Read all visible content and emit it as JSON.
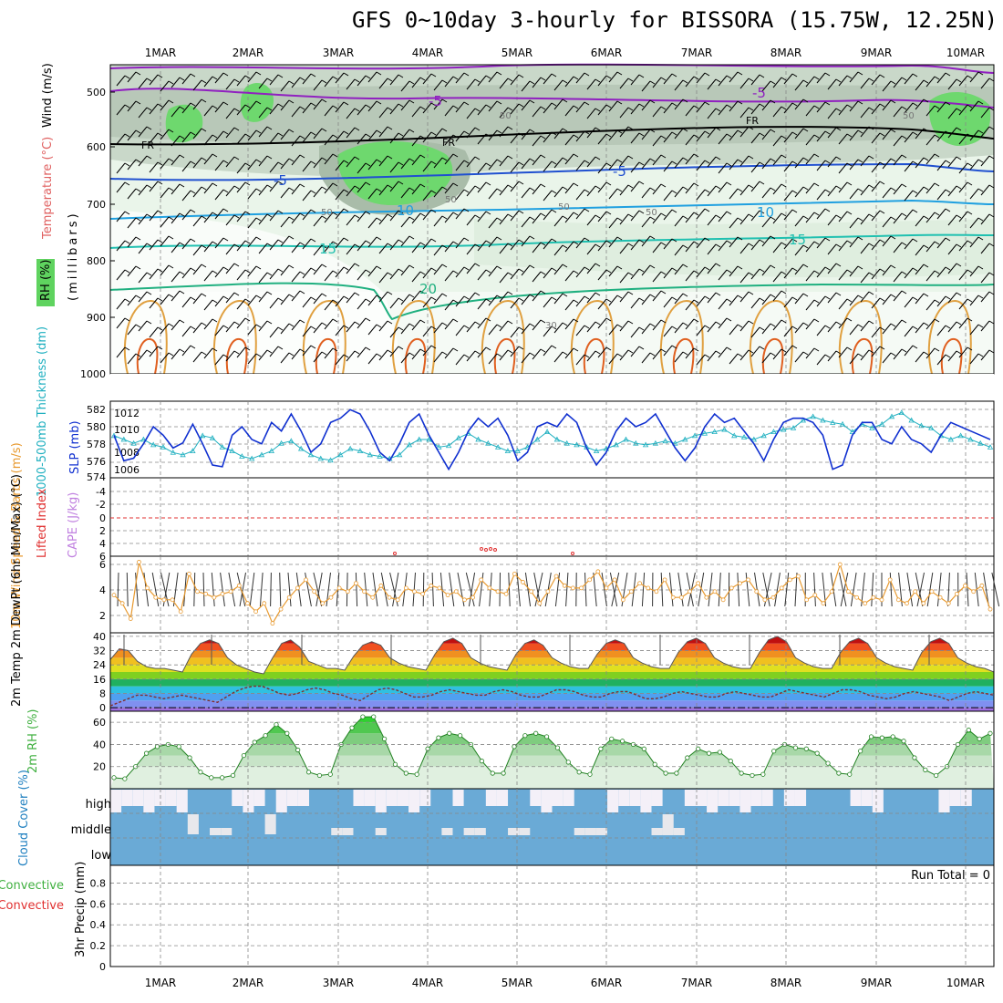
{
  "title": "GFS 0~10day 3-hourly for BISSORA (15.75W, 12.25N)",
  "dates": [
    "1MAR",
    "2MAR",
    "3MAR",
    "4MAR",
    "5MAR",
    "6MAR",
    "7MAR",
    "8MAR",
    "9MAR",
    "10MAR"
  ],
  "colors": {
    "rh": "#5fd35f",
    "slp": "#1030d0",
    "thick": "#20b0c0",
    "wind": "#e89a30",
    "fr": "#000000"
  },
  "chart_data": [
    {
      "type": "area",
      "panel": "upper-air",
      "ylabel_parts": [
        "Wind (m/s)",
        "Temperature (°C)",
        "RH (%)"
      ],
      "yunits": "(millibars)",
      "ylim": [
        1000,
        450
      ],
      "yticks": [
        "500",
        "600",
        "700",
        "800",
        "900",
        "1000"
      ],
      "isotherm_labels": [
        "-5",
        "FR",
        "-5",
        "10",
        "15",
        "20",
        "-5",
        "FR",
        "-5",
        "10",
        "15"
      ],
      "rh_labels": [
        "50",
        "50",
        "50",
        "50",
        "50",
        "30",
        "50"
      ]
    },
    {
      "type": "line",
      "panel": "slp-thickness",
      "ylabel_left": "1000-500mb Thickness (dm)",
      "ylabel_right": "SLP (mb)",
      "yticks_left": [
        "582",
        "580",
        "578",
        "576",
        "574"
      ],
      "yticks_right": [
        "1012",
        "1010",
        "1008",
        "1006"
      ],
      "series": [
        {
          "name": "SLP (mb)",
          "values": [
            1009.5,
            1006.5,
            1006.8,
            1008.5,
            1010.5,
            1009.5,
            1008.0,
            1008.6,
            1010.8,
            1008.5,
            1006.0,
            1005.8,
            1009.5,
            1010.5,
            1009.0,
            1008.5,
            1011.0,
            1010.0,
            1012.0,
            1010.0,
            1007.5,
            1008.5,
            1011.0,
            1011.5,
            1012.5,
            1012.0,
            1010.0,
            1007.5,
            1006.5,
            1008.5,
            1011.0,
            1012.0,
            1009.5,
            1007.5,
            1005.5,
            1007.5,
            1010.0,
            1011.5,
            1010.5,
            1011.5,
            1009.5,
            1006.5,
            1007.5,
            1010.5,
            1011.0,
            1010.5,
            1012.0,
            1011.0,
            1008.0,
            1006.0,
            1007.5,
            1010.0,
            1011.5,
            1010.5,
            1011.0,
            1012.0,
            1010.0,
            1008.0,
            1006.5,
            1008.0,
            1010.5,
            1012.0,
            1011.0,
            1011.5,
            1010.0,
            1008.5,
            1006.5,
            1009.0,
            1011.0,
            1011.5,
            1011.5,
            1011.0,
            1009.5,
            1005.5,
            1006.0,
            1009.5,
            1011.0,
            1011.0,
            1009.0,
            1008.5,
            1010.5,
            1009.0,
            1008.5,
            1007.5,
            1009.5,
            1011.0,
            1010.5,
            1010.0,
            1009.5,
            1009.0
          ]
        },
        {
          "name": "Thickness (dm)",
          "values": [
            578.5,
            578.0,
            577.5,
            578.0,
            577.3,
            577.0,
            576.3,
            576.0,
            576.5,
            578.5,
            578.2,
            577.0,
            576.5,
            575.8,
            575.5,
            576.0,
            576.5,
            577.5,
            577.8,
            576.8,
            576.0,
            575.5,
            575.3,
            576.0,
            576.8,
            576.5,
            576.0,
            575.8,
            575.5,
            576.0,
            577.3,
            578.0,
            578.0,
            577.0,
            577.2,
            578.2,
            578.8,
            578.0,
            577.5,
            577.0,
            576.5,
            576.5,
            577.0,
            578.0,
            579.0,
            578.0,
            577.5,
            577.3,
            577.0,
            576.5,
            576.8,
            577.3,
            578.0,
            577.5,
            577.3,
            577.5,
            577.8,
            577.5,
            578.0,
            578.5,
            578.8,
            579.0,
            579.3,
            578.5,
            578.3,
            578.0,
            578.5,
            579.0,
            579.3,
            579.5,
            580.5,
            581.0,
            580.5,
            580.2,
            580.0,
            579.0,
            580.0,
            579.5,
            580.0,
            581.0,
            581.5,
            580.5,
            579.8,
            579.5,
            578.5,
            578.0,
            578.5,
            578.0,
            577.5,
            577.0
          ]
        }
      ]
    },
    {
      "type": "line",
      "panel": "stability",
      "ylabel_left": "Lifted Index",
      "ylabel_right": "CAPE (J/kg)",
      "yticks": [
        "-4",
        "-2",
        "0",
        "2",
        "4",
        "6"
      ],
      "ylim": [
        -6,
        6
      ],
      "series": [
        {
          "name": "Lifted Index",
          "values": [
            6.0,
            5.8,
            6.0,
            5.9,
            5.8,
            6.0
          ]
        }
      ]
    },
    {
      "type": "line",
      "panel": "wind10m",
      "ylabel": "10m Wind Speed & Barbs (m/s)",
      "yticks": [
        "2",
        "4",
        "6"
      ],
      "ylim": [
        0,
        6.5
      ],
      "series": [
        {
          "name": "Speed",
          "values": [
            3.2,
            2.5,
            1.2,
            6.0,
            3.8,
            3.0,
            2.8,
            2.8,
            1.8,
            5.0,
            3.5,
            3.3,
            3.0,
            3.3,
            3.5,
            4.0,
            2.5,
            1.8,
            2.5,
            0.8,
            2.0,
            3.0,
            3.8,
            4.5,
            3.5,
            2.5,
            3.0,
            3.8,
            3.5,
            4.2,
            3.5,
            3.0,
            4.0,
            3.0,
            2.8,
            3.8,
            3.5,
            3.3,
            4.0,
            3.8,
            3.2,
            3.5,
            2.8,
            3.0,
            4.5,
            3.8,
            3.5,
            3.3,
            5.0,
            4.3,
            3.5,
            2.5,
            3.5,
            4.8,
            4.0,
            3.8,
            3.8,
            4.5,
            5.2,
            3.8,
            4.5,
            2.8,
            3.5,
            4.2,
            3.8,
            3.5,
            4.5,
            3.0,
            3.0,
            3.5,
            4.2,
            3.0,
            3.5,
            2.8,
            3.8,
            4.2,
            4.5,
            3.5,
            2.8,
            3.0,
            3.8,
            4.5,
            4.8,
            2.8,
            3.2,
            2.5,
            3.5,
            5.8,
            3.5,
            3.0,
            2.5,
            3.0,
            2.8,
            4.5,
            2.8,
            2.5,
            3.5,
            2.5,
            3.5,
            3.0,
            2.5,
            3.3,
            4.0,
            3.5,
            4.0,
            2.0
          ]
        }
      ]
    },
    {
      "type": "area",
      "panel": "temperature",
      "ylabel": "2m Temp 2m DewPt (6hr Min/Max) (°C)",
      "yticks": [
        "0",
        "8",
        "16",
        "24",
        "32",
        "40"
      ],
      "ylim": [
        -2,
        42
      ],
      "series": [
        {
          "name": "2m Temp",
          "values": [
            27,
            33,
            32,
            26,
            23,
            22,
            22,
            21,
            20,
            30,
            36,
            38,
            36,
            28,
            24,
            22,
            20,
            19,
            28,
            36,
            38,
            34,
            26,
            24,
            22,
            22,
            21,
            29,
            35,
            37,
            35,
            28,
            25,
            23,
            22,
            21,
            30,
            37,
            39,
            36,
            28,
            25,
            23,
            22,
            21,
            30,
            36,
            38,
            35,
            28,
            25,
            23,
            22,
            22,
            30,
            36,
            38,
            36,
            28,
            25,
            23,
            22,
            22,
            31,
            37,
            39,
            36,
            28,
            25,
            23,
            22,
            22,
            31,
            38,
            40,
            37,
            28,
            25,
            23,
            22,
            22,
            31,
            37,
            39,
            36,
            28,
            25,
            23,
            22,
            21,
            31,
            37,
            39,
            36,
            28,
            25,
            23,
            22,
            20
          ]
        },
        {
          "name": "2m DewPt",
          "values": [
            1,
            3,
            5,
            7,
            7,
            6,
            5,
            6,
            7,
            6,
            5,
            4,
            3,
            6,
            9,
            11,
            12,
            12,
            10,
            8,
            7,
            8,
            10,
            11,
            10,
            8,
            7,
            5,
            4,
            7,
            10,
            11,
            10,
            8,
            6,
            6,
            7,
            9,
            10,
            9,
            8,
            7,
            7,
            9,
            10,
            9,
            7,
            6,
            6,
            8,
            10,
            10,
            9,
            7,
            6,
            6,
            8,
            9,
            9,
            7,
            5,
            5,
            6,
            8,
            9,
            8,
            7,
            6,
            6,
            8,
            9,
            8,
            7,
            6,
            6,
            8,
            10,
            9,
            8,
            7,
            6,
            8,
            10,
            10,
            9,
            7,
            6,
            5,
            6,
            8,
            9,
            8,
            7,
            6,
            4,
            6,
            8,
            9,
            8,
            7
          ]
        }
      ]
    },
    {
      "type": "area",
      "panel": "rh2m",
      "ylabel": "2m RH (%)",
      "yticks": [
        "20",
        "40",
        "60"
      ],
      "ylim": [
        0,
        70
      ],
      "series": [
        {
          "name": "2m RH",
          "values": [
            10,
            9,
            20,
            32,
            38,
            40,
            38,
            28,
            15,
            10,
            10,
            12,
            30,
            42,
            48,
            58,
            50,
            35,
            15,
            12,
            13,
            40,
            55,
            65,
            65,
            45,
            22,
            14,
            13,
            36,
            46,
            50,
            48,
            40,
            25,
            14,
            14,
            38,
            48,
            50,
            47,
            37,
            24,
            15,
            13,
            36,
            45,
            43,
            40,
            36,
            22,
            14,
            14,
            28,
            36,
            32,
            33,
            25,
            14,
            12,
            13,
            34,
            40,
            37,
            36,
            32,
            23,
            14,
            13,
            34,
            47,
            46,
            47,
            43,
            28,
            17,
            12,
            20,
            40,
            53,
            45,
            50
          ]
        }
      ]
    },
    {
      "type": "heatmap",
      "panel": "cloud",
      "ylabel": "Cloud Cover (%)",
      "rows": [
        "high",
        "middle",
        "low"
      ]
    },
    {
      "type": "bar",
      "panel": "precip",
      "ylabel": "3hr Precip (mm)",
      "ylabel_left": "Total / Rain Convective",
      "yticks": [
        "0",
        "0.2",
        "0.4",
        "0.6",
        "0.8"
      ],
      "ylim": [
        0,
        1
      ],
      "run_total": "Run Total = 0",
      "values": []
    }
  ]
}
